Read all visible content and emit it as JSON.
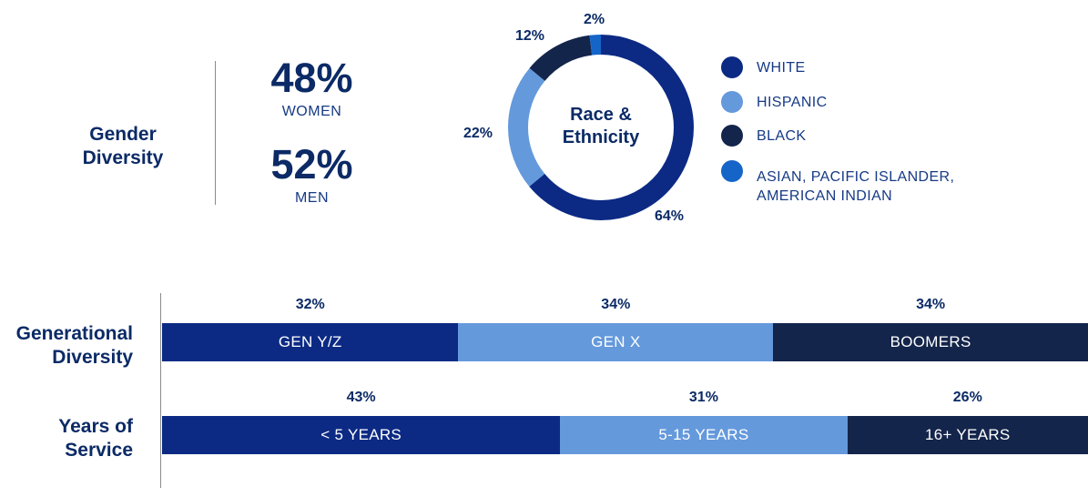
{
  "colors": {
    "white": "#0c2a84",
    "hispanic": "#6499dc",
    "black": "#14254b",
    "asian": "#1565c9",
    "text_dark": "#0b2a66"
  },
  "gender": {
    "title": "Gender\nDiversity",
    "women_pct": "48%",
    "women_label": "WOMEN",
    "men_pct": "52%",
    "men_label": "MEN"
  },
  "chart_data": [
    {
      "type": "pie",
      "title": "Race & Ethnicity",
      "categories": [
        "WHITE",
        "HISPANIC",
        "BLACK",
        "ASIAN, PACIFIC ISLANDER, AMERICAN INDIAN"
      ],
      "values": [
        64,
        22,
        12,
        2
      ],
      "labels": [
        "64%",
        "22%",
        "12%",
        "2%"
      ],
      "colors": [
        "#0c2a84",
        "#6499dc",
        "#14254b",
        "#1565c9"
      ],
      "legend_position": "right"
    },
    {
      "type": "bar",
      "orientation": "horizontal-stacked",
      "title": "Generational Diversity",
      "categories": [
        "GEN Y/Z",
        "GEN X",
        "BOOMERS"
      ],
      "values": [
        32,
        34,
        34
      ],
      "labels": [
        "32%",
        "34%",
        "34%"
      ],
      "colors": [
        "#0c2a84",
        "#6499dc",
        "#14254b"
      ]
    },
    {
      "type": "bar",
      "orientation": "horizontal-stacked",
      "title": "Years of Service",
      "categories": [
        "< 5 YEARS",
        "5-15 YEARS",
        "16+ YEARS"
      ],
      "values": [
        43,
        31,
        26
      ],
      "labels": [
        "43%",
        "31%",
        "26%"
      ],
      "colors": [
        "#0c2a84",
        "#6499dc",
        "#14254b"
      ]
    }
  ],
  "donut": {
    "center_label": "Race &\nEthnicity",
    "legend": [
      "WHITE",
      "HISPANIC",
      "BLACK",
      "ASIAN, PACIFIC ISLANDER,\nAMERICAN INDIAN"
    ]
  },
  "generational": {
    "title": "Generational\nDiversity"
  },
  "service": {
    "title": "Years of\nService"
  }
}
